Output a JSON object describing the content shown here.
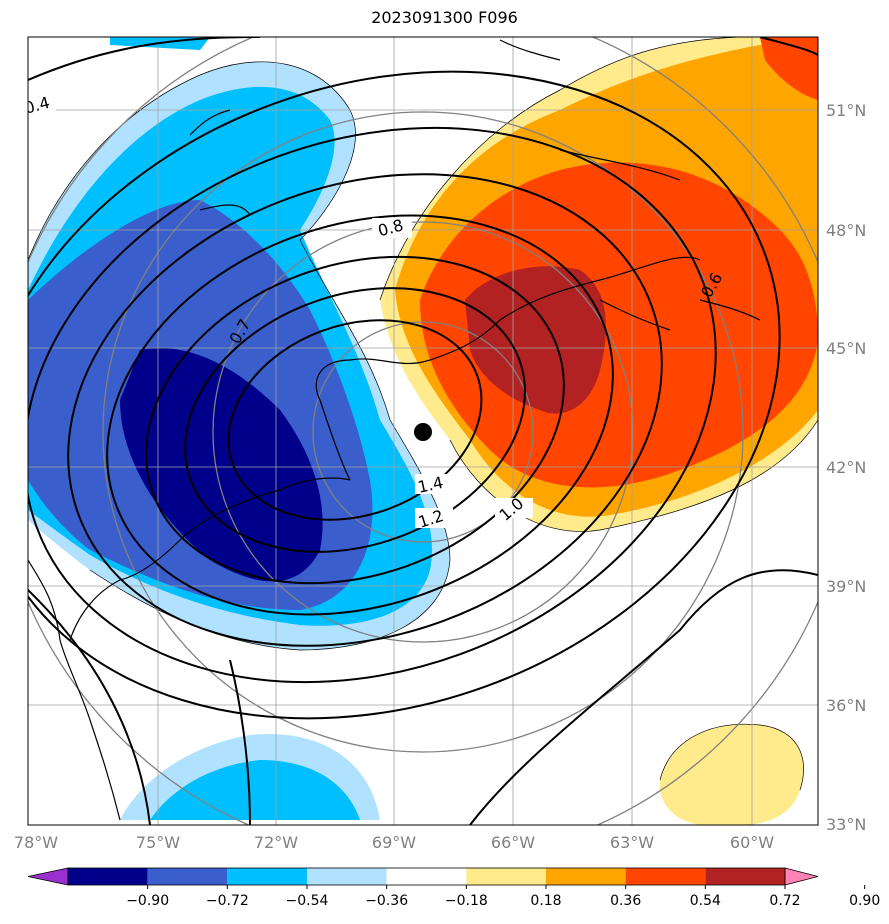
{
  "title": "2023091300 F096",
  "map": {
    "lon_labels": [
      "78°W",
      "75°W",
      "72°W",
      "69°W",
      "66°W",
      "63°W",
      "60°W"
    ],
    "lat_labels": [
      "51°N",
      "48°N",
      "45°N",
      "42°N",
      "39°N",
      "36°N",
      "33°N"
    ],
    "contour_labels": [
      "0.4",
      "0.8",
      "0.7",
      "0.6",
      "1.4",
      "1.2",
      "1.0"
    ],
    "storm_marker": "filled circle"
  },
  "colorbar": {
    "ticks": [
      "−0.90",
      "−0.72",
      "−0.54",
      "−0.36",
      "−0.18",
      "0.18",
      "0.36",
      "0.54",
      "0.72",
      "0.90"
    ],
    "colors": [
      "#9b30d0",
      "#00008b",
      "#3a5fcd",
      "#00bfff",
      "#b0e2ff",
      "#ffffff",
      "#ffea8c",
      "#ffa500",
      "#ff4500",
      "#b22222",
      "#ff83b4"
    ]
  }
}
